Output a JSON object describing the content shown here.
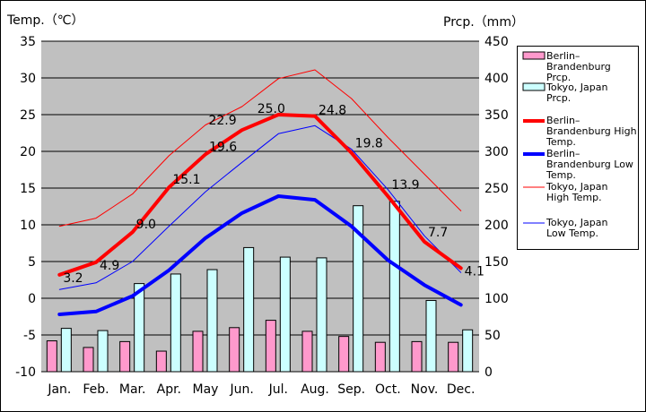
{
  "chart_data": {
    "type": "bar",
    "categories": [
      "Jan.",
      "Feb.",
      "Mar.",
      "Apr.",
      "May",
      "Jun.",
      "Jul.",
      "Aug.",
      "Sep.",
      "Oct.",
      "Nov.",
      "Dec."
    ],
    "y_left": {
      "label": "Temp.（℃）",
      "range": [
        -10,
        35
      ],
      "ticks": [
        35,
        30,
        25,
        20,
        15,
        10,
        5,
        0,
        -5,
        -10
      ]
    },
    "y_right": {
      "label": "Prcp.（mm）",
      "range": [
        0,
        450
      ],
      "ticks": [
        450,
        400,
        350,
        300,
        250,
        200,
        150,
        100,
        50,
        0
      ]
    },
    "grid": true,
    "legend_position": "right",
    "series": [
      {
        "name": "Berlin–Brandenburg Prcp.",
        "legend_lines": [
          "Berlin–",
          "Brandenburg",
          "Prcp."
        ],
        "kind": "bar",
        "axis": "right",
        "color": "#ff99cc",
        "values": [
          42,
          33,
          41,
          28,
          55,
          60,
          70,
          55,
          48,
          40,
          41,
          40
        ]
      },
      {
        "name": "Tokyo, Japan Prcp.",
        "legend_lines": [
          "Tokyo, Japan",
          "Prcp."
        ],
        "kind": "bar",
        "axis": "right",
        "color": "#ccffff",
        "values": [
          59,
          56,
          120,
          133,
          139,
          169,
          156,
          155,
          226,
          232,
          97,
          57
        ]
      },
      {
        "name": "Berlin–Brandenburg High Temp.",
        "legend_lines": [
          "Berlin–",
          "Brandenburg High",
          "Temp."
        ],
        "kind": "line",
        "axis": "left",
        "color": "#ff0000",
        "width": 4,
        "values": [
          3.2,
          4.9,
          9.0,
          15.1,
          19.6,
          22.9,
          25.0,
          24.8,
          19.8,
          13.9,
          7.7,
          4.1
        ],
        "labels": [
          "3.2",
          "4.9",
          "9.0",
          "15.1",
          "19.6",
          "22.9",
          "25.0",
          "24.8",
          "19.8",
          "13.9",
          "7.7",
          "4.1"
        ]
      },
      {
        "name": "Berlin–Brandenburg Low Temp.",
        "legend_lines": [
          "Berlin–",
          "Brandenburg Low",
          "Temp."
        ],
        "kind": "line",
        "axis": "left",
        "color": "#0000ff",
        "width": 4,
        "values": [
          -2.2,
          -1.8,
          0.3,
          3.8,
          8.2,
          11.6,
          13.9,
          13.4,
          9.8,
          5.2,
          1.8,
          -0.9
        ]
      },
      {
        "name": "Tokyo, Japan High Temp.",
        "legend_lines": [
          "Tokyo, Japan",
          "High Temp."
        ],
        "kind": "line",
        "axis": "left",
        "color": "#ff0000",
        "width": 1,
        "values": [
          9.8,
          10.9,
          14.2,
          19.4,
          23.6,
          26.1,
          29.9,
          31.1,
          27.2,
          21.9,
          16.9,
          11.9
        ]
      },
      {
        "name": "Tokyo, Japan Low Temp.",
        "legend_lines": [
          "Tokyo, Japan",
          "Low Temp."
        ],
        "kind": "line",
        "axis": "left",
        "color": "#0000ff",
        "width": 1,
        "values": [
          1.2,
          2.1,
          5.0,
          9.8,
          14.5,
          18.5,
          22.4,
          23.5,
          20.3,
          14.8,
          8.5,
          3.5
        ]
      }
    ]
  }
}
